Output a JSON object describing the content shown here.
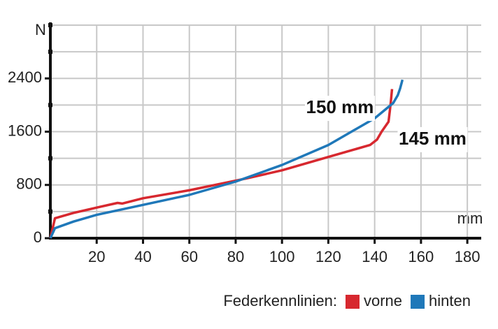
{
  "chart_data": {
    "type": "line",
    "y_label": "N",
    "x_label": "mm",
    "xlim": [
      0,
      186
    ],
    "xticks": [
      20,
      40,
      60,
      80,
      100,
      120,
      140,
      160,
      180
    ],
    "ylim": [
      0,
      3200
    ],
    "yticks": [
      0,
      800,
      1600,
      2400
    ],
    "minor_yticks": [
      400,
      1200,
      2000,
      2800,
      3200
    ],
    "grid": true,
    "legend_title": "Federkennlinien:",
    "series": [
      {
        "name": "vorne",
        "color": "#d7282f",
        "x": [
          0,
          1,
          2,
          10,
          20,
          29,
          31,
          40,
          60,
          85,
          100,
          120,
          138,
          141,
          143,
          146,
          146.5,
          147,
          147.5
        ],
        "values": [
          0,
          150,
          300,
          380,
          460,
          530,
          520,
          600,
          720,
          900,
          1020,
          1220,
          1400,
          1480,
          1600,
          1750,
          1900,
          2050,
          2240
        ]
      },
      {
        "name": "hinten",
        "color": "#1f78b9",
        "x": [
          0,
          2,
          10,
          20,
          40,
          60,
          80,
          100,
          120,
          140,
          148,
          150,
          151,
          152
        ],
        "values": [
          0,
          150,
          250,
          350,
          500,
          650,
          850,
          1100,
          1400,
          1800,
          2030,
          2150,
          2250,
          2380
        ]
      }
    ],
    "annotations": [
      {
        "text": "150 mm",
        "x": 125,
        "y": 1950
      },
      {
        "text": "145 mm",
        "x": 165,
        "y": 1480
      }
    ]
  }
}
